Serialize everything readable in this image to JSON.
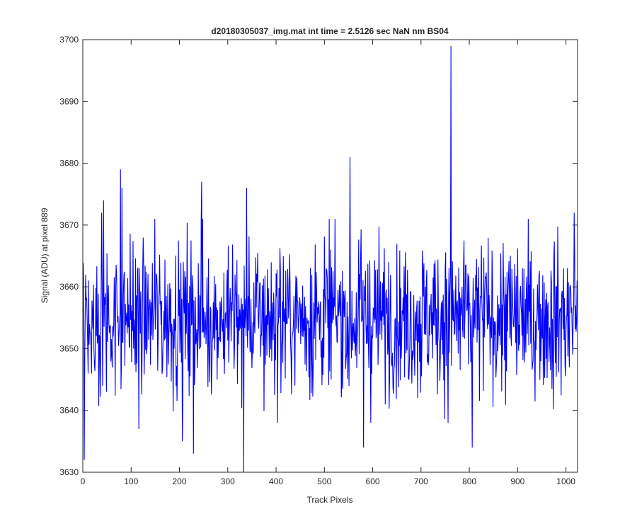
{
  "chart_data": {
    "type": "line",
    "title": "d20180305037_img.mat int time = 2.5126 sec  NaN nm BS04",
    "xlabel": "Track Pixels",
    "ylabel": "Signal (ADU) at pixel 889",
    "xlim": [
      0,
      1024
    ],
    "ylim": [
      3630,
      3700
    ],
    "xticks": [
      0,
      100,
      200,
      300,
      400,
      500,
      600,
      700,
      800,
      900,
      1000
    ],
    "yticks": [
      3630,
      3640,
      3650,
      3660,
      3670,
      3680,
      3690,
      3700
    ],
    "xtick_labels": [
      "0",
      "100",
      "200",
      "300",
      "400",
      "500",
      "600",
      "700",
      "800",
      "900",
      "1000"
    ],
    "ytick_labels": [
      "3630",
      "3640",
      "3650",
      "3660",
      "3670",
      "3680",
      "3690",
      "3700"
    ],
    "grid": false,
    "legend": "none",
    "series": [
      {
        "color": "#0000ff",
        "n_points": 1024,
        "mean": 3655,
        "features": [
          {
            "x": 2,
            "y": 3632
          },
          {
            "x": 38,
            "y": 3672
          },
          {
            "x": 42,
            "y": 3674
          },
          {
            "x": 77,
            "y": 3679
          },
          {
            "x": 80,
            "y": 3676
          },
          {
            "x": 115,
            "y": 3637
          },
          {
            "x": 148,
            "y": 3671
          },
          {
            "x": 205,
            "y": 3635
          },
          {
            "x": 228,
            "y": 3633
          },
          {
            "x": 245,
            "y": 3677
          },
          {
            "x": 332,
            "y": 3630
          },
          {
            "x": 338,
            "y": 3676
          },
          {
            "x": 552,
            "y": 3681
          },
          {
            "x": 580,
            "y": 3634
          },
          {
            "x": 755,
            "y": 3638
          },
          {
            "x": 761,
            "y": 3699
          },
          {
            "x": 805,
            "y": 3634
          },
          {
            "x": 1016,
            "y": 3672
          }
        ]
      }
    ]
  }
}
